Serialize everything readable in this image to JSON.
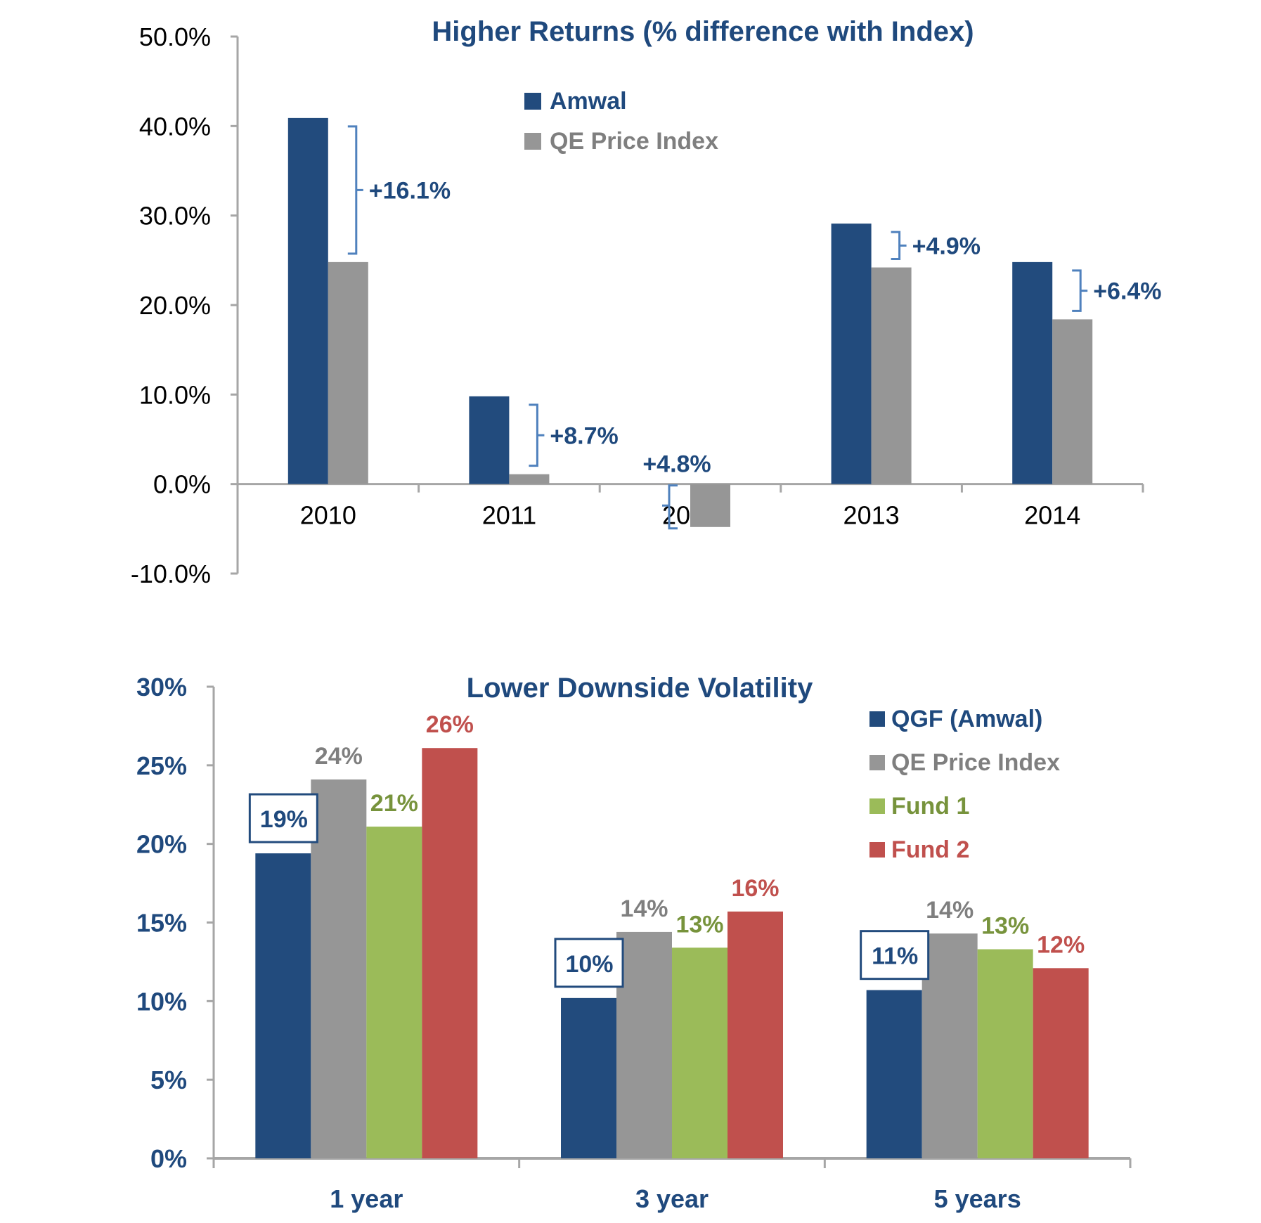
{
  "colors": {
    "amwal": "#224B7D",
    "index": "#969696",
    "fund1": "#9BBB59",
    "fund2": "#C0504D",
    "title": "#1F497D",
    "index_label": "#7F7F7F",
    "fund1_label": "#77933C",
    "fund2_label": "#C0504D",
    "bracket": "#4F81BD",
    "axis": "#A6A6A6"
  },
  "chart_data": [
    {
      "type": "bar",
      "title": "Higher Returns (% difference with Index)",
      "categories": [
        "2010",
        "2011",
        "2012",
        "2013",
        "2014"
      ],
      "series": [
        {
          "name": "Amwal",
          "values": [
            40.9,
            9.8,
            0.0,
            29.1,
            24.8
          ]
        },
        {
          "name": "QE Price Index",
          "values": [
            24.8,
            1.1,
            -4.8,
            24.2,
            18.4
          ]
        }
      ],
      "ylim": [
        -10,
        50
      ],
      "yticks": [
        50,
        40,
        30,
        20,
        10,
        0,
        -10
      ],
      "ytick_labels": [
        "50.0%",
        "40.0%",
        "30.0%",
        "20.0%",
        "10.0%",
        "0.0%",
        "-10.0%"
      ],
      "xlabel": "",
      "ylabel": "",
      "grid": false,
      "legend_position": "top-center",
      "annotations": [
        "+16.1%",
        "+8.7%",
        "+4.8%",
        "+4.9%",
        "+6.4%"
      ]
    },
    {
      "type": "bar",
      "title": "Lower Downside Volatility",
      "categories": [
        "1 year",
        "3 year",
        "5 years"
      ],
      "series": [
        {
          "name": "QGF (Amwal)",
          "values": [
            19.4,
            10.2,
            10.7
          ],
          "labels": [
            "19%",
            "10%",
            "11%"
          ]
        },
        {
          "name": "QE Price Index",
          "values": [
            24.1,
            14.4,
            14.3
          ],
          "labels": [
            "24%",
            "14%",
            "14%"
          ]
        },
        {
          "name": "Fund 1",
          "values": [
            21.1,
            13.4,
            13.3
          ],
          "labels": [
            "21%",
            "13%",
            "13%"
          ]
        },
        {
          "name": "Fund 2",
          "values": [
            26.1,
            15.7,
            12.1
          ],
          "labels": [
            "26%",
            "16%",
            "12%"
          ]
        }
      ],
      "ylim": [
        0,
        30
      ],
      "yticks": [
        30,
        25,
        20,
        15,
        10,
        5,
        0
      ],
      "ytick_labels": [
        "30%",
        "25%",
        "20%",
        "15%",
        "10%",
        "5%",
        "0%"
      ],
      "xlabel": "",
      "ylabel": "",
      "grid": false,
      "legend_position": "top-right"
    }
  ]
}
